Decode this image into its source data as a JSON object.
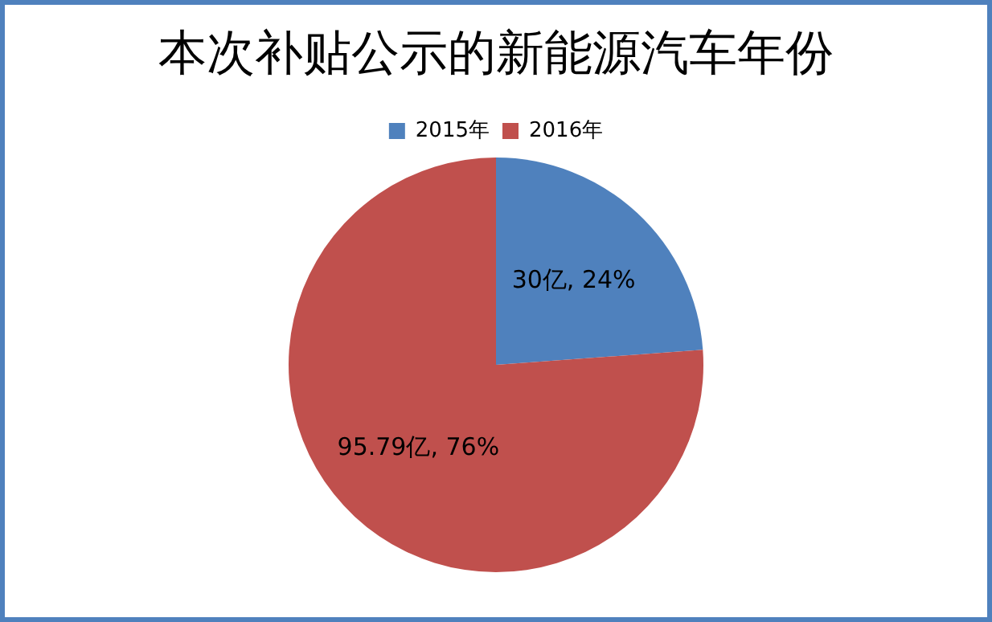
{
  "chart_data": {
    "type": "pie",
    "title": "本次补贴公示的新能源汽车年份",
    "categories": [
      "2015年",
      "2016年"
    ],
    "values": [
      30,
      95.79
    ],
    "colors": [
      "#4f81bd",
      "#c0504d"
    ],
    "value_labels": [
      "30亿, 24%",
      "95.79亿, 76%"
    ],
    "legend": "top"
  }
}
